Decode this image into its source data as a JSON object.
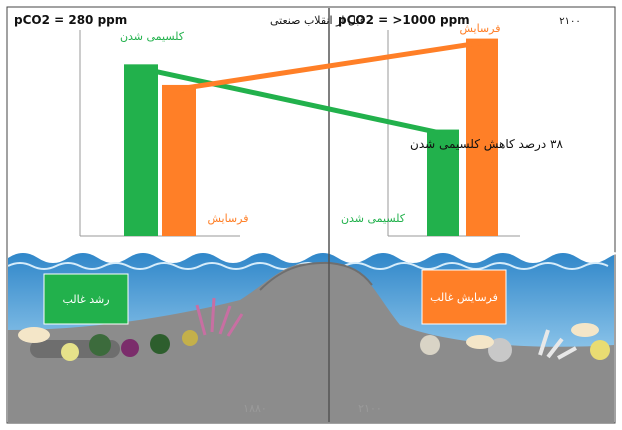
{
  "left_panel": {
    "pco2_label": "pCO2 = 280 ppm",
    "era_label": "قبل از انقلاب صنعتی",
    "calcification_label": "کلسیمی شدن",
    "erosion_label": "فرسایش",
    "reef_box_label": "رشد غالب",
    "year_label": "۱۸۸۰"
  },
  "right_panel": {
    "pco2_label": "pCO2 = >1000 ppm",
    "year_label_top": "۲۱۰۰",
    "erosion_label": "فرسایش",
    "calcification_label": "کلسیمی شدن",
    "reef_box_label": "فرسایش غالب",
    "year_label": "۲۱۰۰"
  },
  "annotation": "۳۸ درصد کاهش کلسیمی شدن",
  "colors": {
    "calcification": "#22b14c",
    "erosion": "#ff7f27",
    "rock": "#8c8c8c",
    "water": "#4f9fd6"
  },
  "chart_data": {
    "type": "bar",
    "categories": [
      "۱۸۸۰",
      "۲۱۰۰"
    ],
    "series": [
      {
        "name": "کلسیمی شدن",
        "values": [
          100,
          62
        ]
      },
      {
        "name": "فرسایش",
        "values": [
          88,
          115
        ]
      }
    ],
    "ylim": [
      0,
      120
    ]
  }
}
